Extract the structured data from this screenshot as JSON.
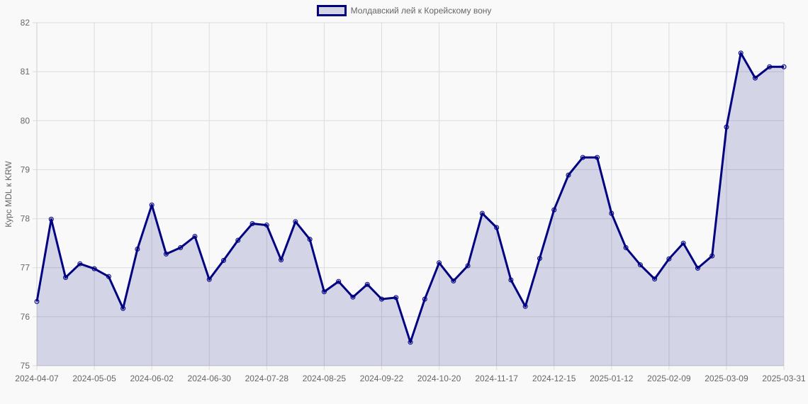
{
  "chart_data": {
    "type": "line",
    "title": "",
    "legend": {
      "label": "Молдавский лей к Корейскому вону",
      "position": "top"
    },
    "xlabel": "",
    "ylabel": "Курс MDL к KRW",
    "ylim": [
      75,
      82
    ],
    "yticks": [
      "75",
      "76",
      "77",
      "78",
      "79",
      "80",
      "81",
      "82"
    ],
    "xticks": [
      "2024-04-07",
      "2024-05-05",
      "2024-06-02",
      "2024-06-30",
      "2024-07-28",
      "2024-08-25",
      "2024-09-22",
      "2024-10-20",
      "2024-11-17",
      "2024-12-15",
      "2025-01-12",
      "2025-02-09",
      "2025-03-09",
      "2025-03-31"
    ],
    "grid": true,
    "fill": true,
    "colors": {
      "line": "#000080",
      "fill": "rgba(0,0,128,0.15)"
    },
    "series": [
      {
        "name": "Молдавский лей к Корейскому вону",
        "values": [
          76.31,
          77.99,
          76.8,
          77.08,
          76.98,
          76.82,
          76.17,
          77.38,
          78.28,
          77.28,
          77.41,
          77.64,
          76.76,
          77.15,
          77.56,
          77.9,
          77.87,
          77.16,
          77.94,
          77.58,
          76.51,
          76.72,
          76.4,
          76.66,
          76.36,
          76.39,
          75.48,
          76.36,
          77.1,
          76.73,
          77.04,
          78.11,
          77.82,
          76.75,
          76.21,
          77.19,
          78.18,
          78.89,
          79.25,
          79.25,
          78.11,
          77.41,
          77.06,
          76.77,
          77.18,
          77.5,
          76.99,
          77.24,
          79.87,
          81.38,
          80.87,
          81.1,
          81.1
        ]
      }
    ]
  }
}
